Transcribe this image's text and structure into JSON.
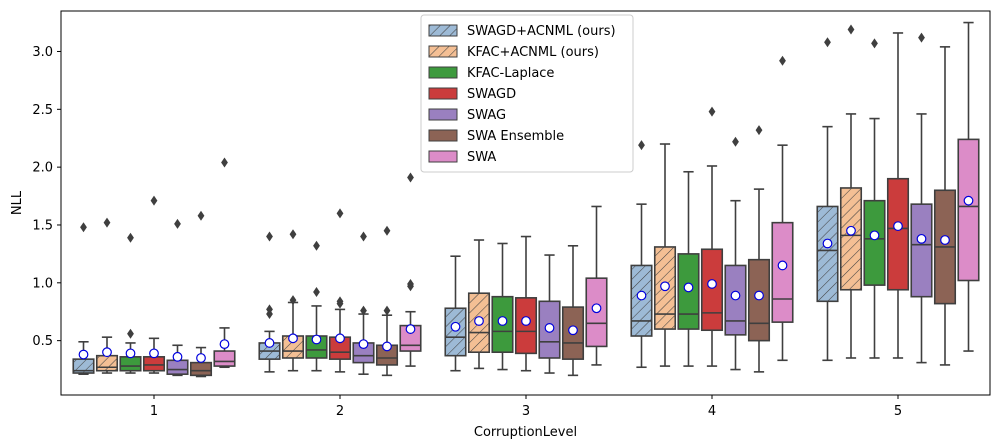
{
  "chart_data": {
    "type": "boxplot",
    "xlabel": "CorruptionLevel",
    "ylabel": "NLL",
    "categories": [
      "1",
      "2",
      "3",
      "4",
      "5"
    ],
    "ylim": [
      0.03,
      3.35
    ],
    "yticks": [
      0.5,
      1.0,
      1.5,
      2.0,
      2.5,
      3.0
    ],
    "ytick_labels": [
      "0.5",
      "1.0",
      "1.5",
      "2.0",
      "2.5",
      "3.0"
    ],
    "legend_location": "upper-center",
    "series": [
      {
        "name": "SWAGD+ACNML (ours)",
        "color": "#9dbad6",
        "hatch": true,
        "boxes": [
          {
            "whislo": 0.21,
            "q1": 0.22,
            "med": 0.24,
            "q3": 0.34,
            "whishi": 0.49,
            "mean": 0.38,
            "fliers": [
              1.48
            ]
          },
          {
            "whislo": 0.23,
            "q1": 0.34,
            "med": 0.41,
            "q3": 0.48,
            "whishi": 0.58,
            "mean": 0.48,
            "fliers": [
              0.73,
              0.77,
              1.4
            ]
          },
          {
            "whislo": 0.24,
            "q1": 0.37,
            "med": 0.53,
            "q3": 0.78,
            "whishi": 1.23,
            "mean": 0.62,
            "fliers": []
          },
          {
            "whislo": 0.27,
            "q1": 0.54,
            "med": 0.67,
            "q3": 1.15,
            "whishi": 1.68,
            "mean": 0.89,
            "fliers": [
              2.19
            ]
          },
          {
            "whislo": 0.33,
            "q1": 0.84,
            "med": 1.28,
            "q3": 1.66,
            "whishi": 2.35,
            "mean": 1.34,
            "fliers": [
              3.08
            ]
          }
        ]
      },
      {
        "name": "KFAC+ACNML (ours)",
        "color": "#f4bf94",
        "hatch": true,
        "boxes": [
          {
            "whislo": 0.22,
            "q1": 0.24,
            "med": 0.27,
            "q3": 0.37,
            "whishi": 0.53,
            "mean": 0.4,
            "fliers": [
              1.52
            ]
          },
          {
            "whislo": 0.24,
            "q1": 0.35,
            "med": 0.41,
            "q3": 0.54,
            "whishi": 0.83,
            "mean": 0.52,
            "fliers": [
              0.85,
              1.42
            ]
          },
          {
            "whislo": 0.26,
            "q1": 0.4,
            "med": 0.57,
            "q3": 0.91,
            "whishi": 1.37,
            "mean": 0.67,
            "fliers": []
          },
          {
            "whislo": 0.28,
            "q1": 0.6,
            "med": 0.73,
            "q3": 1.31,
            "whishi": 2.2,
            "mean": 0.97,
            "fliers": []
          },
          {
            "whislo": 0.35,
            "q1": 0.94,
            "med": 1.41,
            "q3": 1.82,
            "whishi": 2.46,
            "mean": 1.45,
            "fliers": [
              3.19
            ]
          }
        ]
      },
      {
        "name": "KFAC-Laplace",
        "color": "#3d9a3d",
        "hatch": false,
        "boxes": [
          {
            "whislo": 0.22,
            "q1": 0.24,
            "med": 0.28,
            "q3": 0.36,
            "whishi": 0.48,
            "mean": 0.39,
            "fliers": [
              0.56,
              1.39
            ]
          },
          {
            "whislo": 0.24,
            "q1": 0.35,
            "med": 0.42,
            "q3": 0.54,
            "whishi": 0.8,
            "mean": 0.51,
            "fliers": [
              0.92,
              1.32
            ]
          },
          {
            "whislo": 0.25,
            "q1": 0.4,
            "med": 0.58,
            "q3": 0.88,
            "whishi": 1.34,
            "mean": 0.67,
            "fliers": []
          },
          {
            "whislo": 0.28,
            "q1": 0.6,
            "med": 0.73,
            "q3": 1.25,
            "whishi": 1.96,
            "mean": 0.96,
            "fliers": []
          },
          {
            "whislo": 0.35,
            "q1": 0.98,
            "med": 1.38,
            "q3": 1.71,
            "whishi": 2.42,
            "mean": 1.41,
            "fliers": [
              3.07
            ]
          }
        ]
      },
      {
        "name": "SWAGD",
        "color": "#cb3c3c",
        "hatch": false,
        "boxes": [
          {
            "whislo": 0.22,
            "q1": 0.24,
            "med": 0.29,
            "q3": 0.36,
            "whishi": 0.52,
            "mean": 0.39,
            "fliers": [
              1.71
            ]
          },
          {
            "whislo": 0.23,
            "q1": 0.34,
            "med": 0.4,
            "q3": 0.53,
            "whishi": 0.77,
            "mean": 0.52,
            "fliers": [
              0.82,
              0.84,
              1.6
            ]
          },
          {
            "whislo": 0.24,
            "q1": 0.39,
            "med": 0.58,
            "q3": 0.87,
            "whishi": 1.4,
            "mean": 0.67,
            "fliers": []
          },
          {
            "whislo": 0.28,
            "q1": 0.59,
            "med": 0.74,
            "q3": 1.29,
            "whishi": 2.01,
            "mean": 0.99,
            "fliers": [
              2.48
            ]
          },
          {
            "whislo": 0.35,
            "q1": 0.94,
            "med": 1.47,
            "q3": 1.9,
            "whishi": 3.16,
            "mean": 1.49,
            "fliers": []
          }
        ]
      },
      {
        "name": "SWAG",
        "color": "#9a80c0",
        "hatch": false,
        "boxes": [
          {
            "whislo": 0.2,
            "q1": 0.21,
            "med": 0.25,
            "q3": 0.33,
            "whishi": 0.46,
            "mean": 0.36,
            "fliers": [
              1.51
            ]
          },
          {
            "whislo": 0.21,
            "q1": 0.31,
            "med": 0.37,
            "q3": 0.48,
            "whishi": 0.73,
            "mean": 0.47,
            "fliers": [
              0.76,
              1.4
            ]
          },
          {
            "whislo": 0.22,
            "q1": 0.35,
            "med": 0.49,
            "q3": 0.84,
            "whishi": 1.24,
            "mean": 0.61,
            "fliers": []
          },
          {
            "whislo": 0.25,
            "q1": 0.55,
            "med": 0.67,
            "q3": 1.15,
            "whishi": 1.71,
            "mean": 0.89,
            "fliers": [
              2.22
            ]
          },
          {
            "whislo": 0.31,
            "q1": 0.88,
            "med": 1.33,
            "q3": 1.68,
            "whishi": 2.46,
            "mean": 1.38,
            "fliers": [
              3.12
            ]
          }
        ]
      },
      {
        "name": "SWA Ensemble",
        "color": "#8c6355",
        "hatch": false,
        "boxes": [
          {
            "whislo": 0.19,
            "q1": 0.2,
            "med": 0.24,
            "q3": 0.31,
            "whishi": 0.44,
            "mean": 0.35,
            "fliers": [
              1.58
            ]
          },
          {
            "whislo": 0.2,
            "q1": 0.29,
            "med": 0.35,
            "q3": 0.46,
            "whishi": 0.72,
            "mean": 0.45,
            "fliers": [
              0.76,
              1.45
            ]
          },
          {
            "whislo": 0.2,
            "q1": 0.34,
            "med": 0.48,
            "q3": 0.79,
            "whishi": 1.32,
            "mean": 0.59,
            "fliers": []
          },
          {
            "whislo": 0.23,
            "q1": 0.5,
            "med": 0.65,
            "q3": 1.2,
            "whishi": 1.81,
            "mean": 0.89,
            "fliers": [
              2.32
            ]
          },
          {
            "whislo": 0.29,
            "q1": 0.82,
            "med": 1.31,
            "q3": 1.8,
            "whishi": 3.04,
            "mean": 1.37,
            "fliers": []
          }
        ]
      },
      {
        "name": "SWA",
        "color": "#dc8cc8",
        "hatch": false,
        "boxes": [
          {
            "whislo": 0.27,
            "q1": 0.28,
            "med": 0.32,
            "q3": 0.41,
            "whishi": 0.61,
            "mean": 0.47,
            "fliers": [
              2.04
            ]
          },
          {
            "whislo": 0.28,
            "q1": 0.41,
            "med": 0.46,
            "q3": 0.63,
            "whishi": 0.75,
            "mean": 0.6,
            "fliers": [
              0.97,
              0.99,
              1.91
            ]
          },
          {
            "whislo": 0.29,
            "q1": 0.45,
            "med": 0.65,
            "q3": 1.04,
            "whishi": 1.66,
            "mean": 0.78,
            "fliers": []
          },
          {
            "whislo": 0.33,
            "q1": 0.66,
            "med": 0.86,
            "q3": 1.52,
            "whishi": 2.19,
            "mean": 1.15,
            "fliers": [
              2.92
            ]
          },
          {
            "whislo": 0.41,
            "q1": 1.02,
            "med": 1.66,
            "q3": 2.24,
            "whishi": 3.25,
            "mean": 1.71,
            "fliers": []
          }
        ]
      }
    ]
  }
}
